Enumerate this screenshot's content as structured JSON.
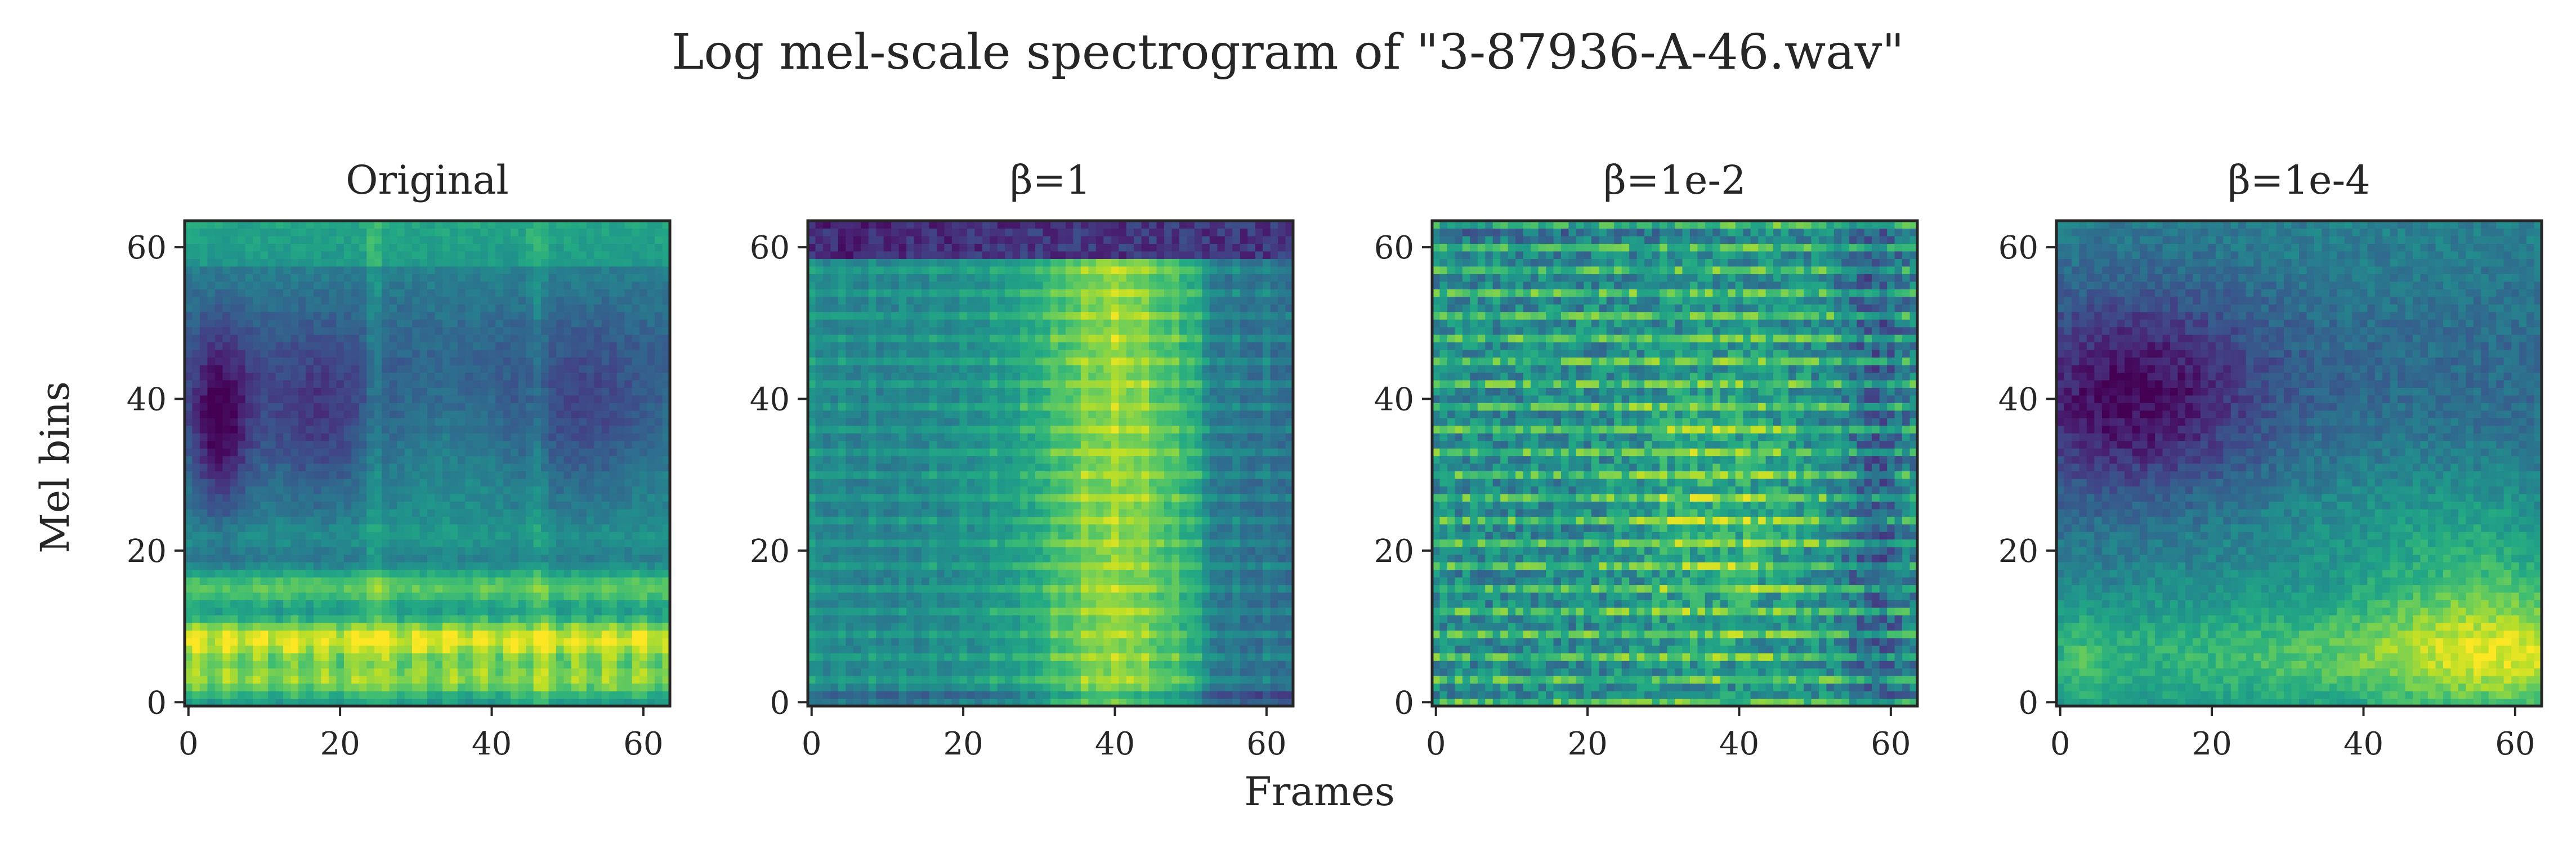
{
  "chart_data": {
    "type": "heatmap",
    "title": "Log mel-scale spectrogram of \"3-87936-A-46.wav\"",
    "xlabel": "Frames",
    "ylabel": "Mel bins",
    "xlim": [
      0,
      63
    ],
    "ylim": [
      0,
      63
    ],
    "xticks": [
      "0",
      "20",
      "40",
      "60"
    ],
    "yticks": [
      "0",
      "20",
      "40",
      "60"
    ],
    "colormap": "viridis",
    "grid": false,
    "panels": [
      {
        "title": "Original",
        "grid_size": 64,
        "style": "original"
      },
      {
        "title": "β=1",
        "grid_size": 64,
        "style": "beta1"
      },
      {
        "title": "β=1e-2",
        "grid_size": 64,
        "style": "beta1e-2"
      },
      {
        "title": "β=1e-4",
        "grid_size": 64,
        "style": "beta1e-4"
      }
    ]
  }
}
